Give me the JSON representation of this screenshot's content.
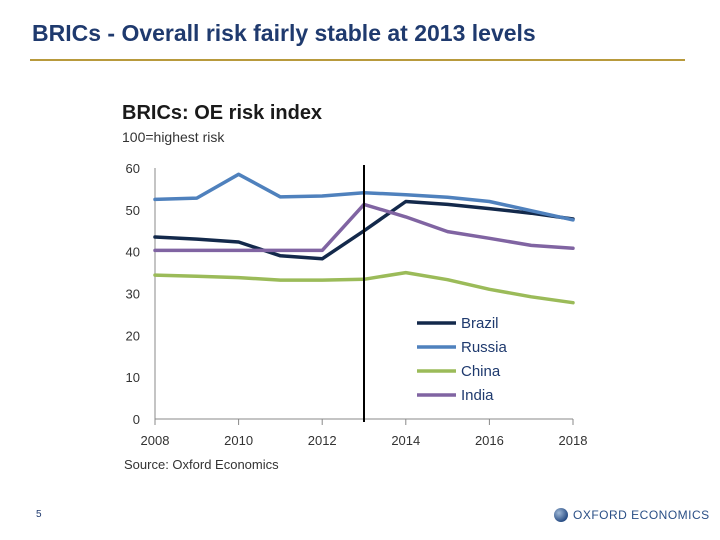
{
  "slide": {
    "title": "BRICs - Overall risk fairly stable at 2013 levels",
    "page_number": "5",
    "logo_text": "OXFORD ECONOMICS"
  },
  "chart_data": {
    "type": "line",
    "title": "BRICs: OE risk index",
    "subtitle": "100=highest risk",
    "source": "Source: Oxford Economics",
    "x": [
      2008,
      2009,
      2010,
      2011,
      2012,
      2013,
      2014,
      2015,
      2016,
      2017,
      2018
    ],
    "x_tick_labels": [
      "2008",
      "2010",
      "2012",
      "2014",
      "2016",
      "2018"
    ],
    "y_tick_labels": [
      "0",
      "10",
      "20",
      "30",
      "40",
      "50",
      "60"
    ],
    "xlim": [
      2008,
      2018
    ],
    "ylim": [
      0,
      60
    ],
    "vertical_marker_x": 2013,
    "legend_position": "bottom-right",
    "series": [
      {
        "name": "Brazil",
        "color": "#13294b",
        "values": [
          43.5,
          43,
          42.3,
          39,
          38.3,
          45,
          52,
          51.3,
          50.3,
          49.2,
          47.8
        ]
      },
      {
        "name": "Russia",
        "color": "#4f81bd",
        "values": [
          52.5,
          52.8,
          58.5,
          53.1,
          53.3,
          54.1,
          53.6,
          53,
          52,
          49.8,
          47.6
        ]
      },
      {
        "name": "China",
        "color": "#9bbb59",
        "values": [
          34.4,
          34.1,
          33.8,
          33.2,
          33.2,
          33.4,
          35,
          33.3,
          31,
          29.2,
          27.8
        ]
      },
      {
        "name": "India",
        "color": "#8064a2",
        "values": [
          40.3,
          40.3,
          40.3,
          40.3,
          40.3,
          51.3,
          48.3,
          44.8,
          43.2,
          41.5,
          40.8
        ]
      }
    ]
  }
}
